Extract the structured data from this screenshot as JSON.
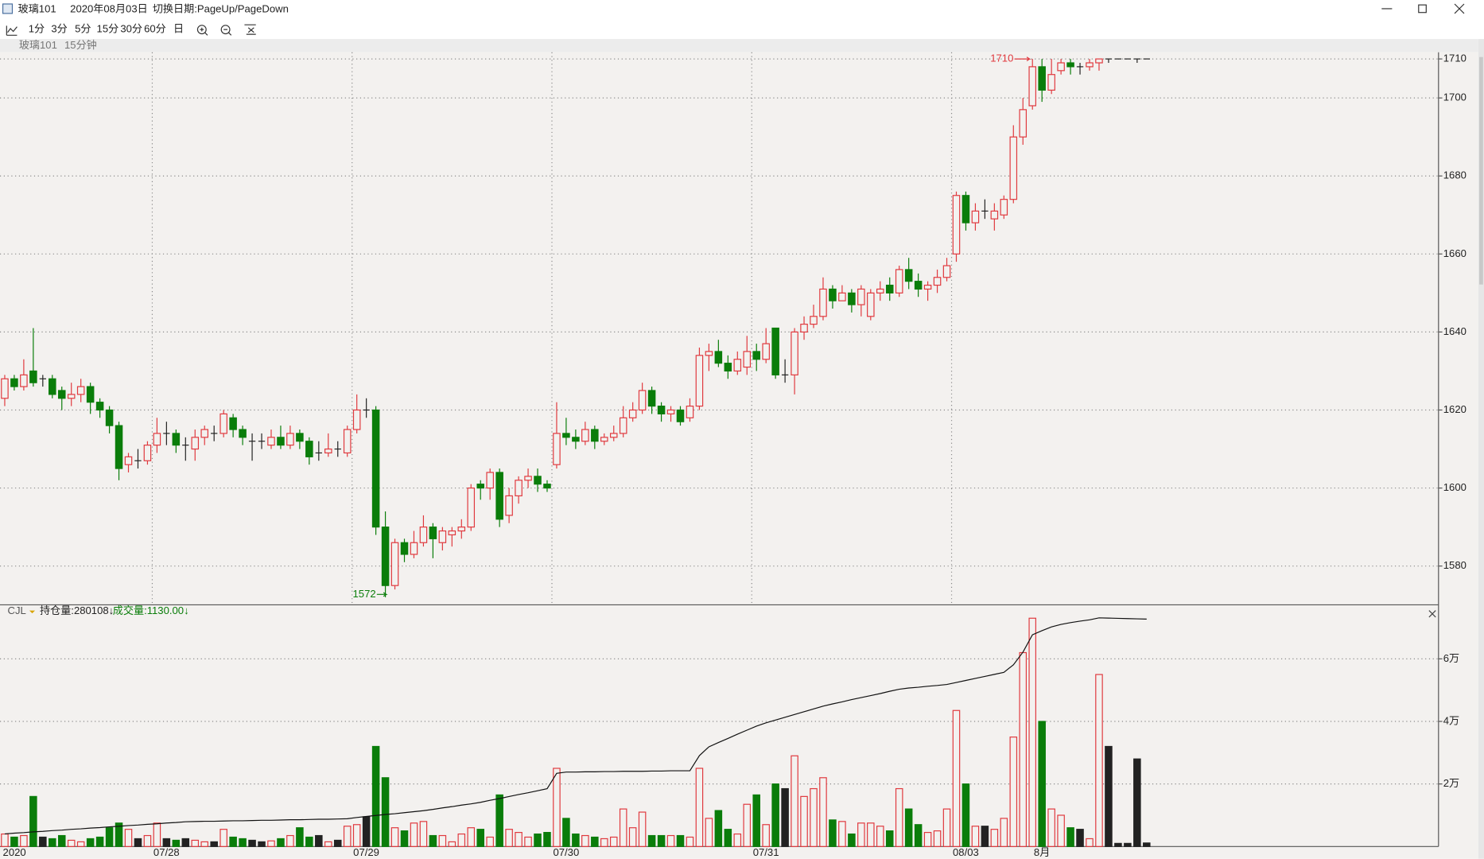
{
  "window": {
    "title": "玻璃101",
    "date": "2020年08月03日",
    "hint": "切换日期:PageUp/PageDown"
  },
  "toolbar": [
    "1分",
    "3分",
    "5分",
    "15分",
    "30分",
    "60分",
    "日"
  ],
  "subheader": [
    "玻璃101",
    "15分钟"
  ],
  "indicator": "CJL",
  "chart_data": [
    {
      "type": "candlestick",
      "up_color": "#e0393e",
      "down_color": "#0a7d0a",
      "flat_color": "#222222",
      "grid": true,
      "annotations": {
        "max": "1710",
        "min": "1572"
      },
      "categories": [
        "2020",
        null,
        null,
        null,
        null,
        null,
        null,
        null,
        null,
        null,
        null,
        null,
        null,
        null,
        null,
        null,
        "07/28",
        null,
        null,
        null,
        null,
        null,
        null,
        null,
        null,
        null,
        null,
        null,
        null,
        null,
        null,
        null,
        null,
        null,
        null,
        null,
        null,
        "07/29",
        null,
        null,
        null,
        null,
        null,
        null,
        null,
        null,
        null,
        null,
        null,
        null,
        null,
        null,
        null,
        null,
        null,
        null,
        null,
        null,
        "07/30",
        null,
        null,
        null,
        null,
        null,
        null,
        null,
        null,
        null,
        null,
        null,
        null,
        null,
        null,
        null,
        null,
        null,
        null,
        null,
        null,
        "07/31",
        null,
        null,
        null,
        null,
        null,
        null,
        null,
        null,
        null,
        null,
        null,
        null,
        null,
        null,
        null,
        null,
        null,
        null,
        null,
        null,
        "08/03",
        null,
        null,
        null,
        null,
        null,
        null,
        null,
        "8月",
        null,
        null,
        null,
        null,
        null,
        null,
        null,
        null,
        null,
        null,
        null,
        null
      ],
      "open": [
        1623,
        1628,
        1626,
        1630,
        1628,
        1628,
        1625,
        1623,
        1624,
        1626,
        1622,
        1620,
        1616,
        1606,
        1607,
        1607,
        1611,
        1614,
        1614,
        1611,
        1610,
        1613,
        1614,
        1614,
        1618,
        1615,
        1612,
        1612,
        1611,
        1613,
        1611,
        1614,
        1612,
        1609,
        1609,
        1610,
        1609,
        1615,
        1620,
        1620,
        1590,
        1575,
        1586,
        1583,
        1586,
        1590,
        1586,
        1588,
        1589,
        1590,
        1601,
        1600,
        1604,
        1593,
        1598,
        1602,
        1603,
        1601,
        1606,
        1614,
        1613,
        1612,
        1615,
        1612,
        1613,
        1614,
        1618,
        1620,
        1625,
        1621,
        1619,
        1620,
        1618,
        1621,
        1634,
        1635,
        1632,
        1630,
        1631,
        1635,
        1633,
        1641,
        1629,
        1629,
        1640,
        1642,
        1644,
        1651,
        1648,
        1650,
        1647,
        1644,
        1650,
        1652,
        1650,
        1656,
        1653,
        1651,
        1652,
        1654,
        1660,
        1675,
        1668,
        1671,
        1669,
        1670,
        1674,
        1690,
        1698,
        1708,
        1702,
        1707,
        1709,
        1708,
        1708,
        1709,
        1710,
        1710,
        1710,
        1710,
        1710
      ],
      "high": [
        1629,
        1629,
        1633,
        1641,
        1629,
        1629,
        1626,
        1627,
        1628,
        1627,
        1623,
        1621,
        1617,
        1609,
        1610,
        1612,
        1618,
        1617,
        1615,
        1613,
        1615,
        1616,
        1616,
        1620,
        1619,
        1616,
        1614,
        1614,
        1615,
        1616,
        1616,
        1615,
        1613,
        1612,
        1614,
        1612,
        1616,
        1624,
        1623,
        1621,
        1594,
        1587,
        1587,
        1589,
        1593,
        1591,
        1590,
        1590,
        1592,
        1601,
        1602,
        1605,
        1605,
        1600,
        1603,
        1605,
        1605,
        1602,
        1622,
        1618,
        1615,
        1617,
        1616,
        1614,
        1616,
        1621,
        1622,
        1627,
        1626,
        1622,
        1621,
        1621,
        1623,
        1636,
        1637,
        1638,
        1634,
        1635,
        1639,
        1637,
        1641,
        1641,
        1633,
        1641,
        1644,
        1647,
        1654,
        1652,
        1652,
        1651,
        1652,
        1651,
        1653,
        1654,
        1657,
        1659,
        1655,
        1653,
        1656,
        1659,
        1676,
        1676,
        1673,
        1674,
        1673,
        1675,
        1693,
        1700,
        1710,
        1710,
        1710,
        1710,
        1710,
        1709,
        1710,
        1710,
        1710,
        1710,
        1710,
        1710,
        1710
      ],
      "low": [
        1621,
        1625,
        1625,
        1626,
        1626,
        1623,
        1620,
        1621,
        1622,
        1619,
        1618,
        1614,
        1602,
        1604,
        1605,
        1606,
        1609,
        1611,
        1609,
        1607,
        1607,
        1611,
        1612,
        1613,
        1613,
        1611,
        1607,
        1610,
        1610,
        1610,
        1610,
        1610,
        1606,
        1607,
        1608,
        1608,
        1608,
        1614,
        1618,
        1588,
        1572,
        1574,
        1581,
        1582,
        1585,
        1582,
        1584,
        1585,
        1587,
        1589,
        1597,
        1597,
        1590,
        1591,
        1596,
        1600,
        1599,
        1599,
        1605,
        1611,
        1610,
        1611,
        1610,
        1611,
        1612,
        1613,
        1617,
        1619,
        1619,
        1617,
        1617,
        1616,
        1617,
        1620,
        1630,
        1631,
        1628,
        1629,
        1629,
        1630,
        1632,
        1628,
        1627,
        1624,
        1638,
        1641,
        1643,
        1646,
        1648,
        1645,
        1644,
        1643,
        1648,
        1648,
        1649,
        1651,
        1649,
        1648,
        1650,
        1653,
        1658,
        1666,
        1666,
        1669,
        1666,
        1669,
        1673,
        1688,
        1697,
        1699,
        1701,
        1706,
        1706,
        1706,
        1707,
        1707,
        1709,
        1710,
        1710,
        1709,
        1710
      ],
      "close": [
        1628,
        1626,
        1629,
        1627,
        1628,
        1624,
        1623,
        1624,
        1626,
        1622,
        1620,
        1616,
        1605,
        1608,
        1607,
        1611,
        1614,
        1614,
        1611,
        1611,
        1613,
        1615,
        1614,
        1619,
        1615,
        1613,
        1612,
        1612,
        1613,
        1611,
        1614,
        1612,
        1608,
        1609,
        1610,
        1610,
        1615,
        1620,
        1620,
        1590,
        1575,
        1586,
        1583,
        1586,
        1590,
        1587,
        1589,
        1589,
        1590,
        1600,
        1600,
        1604,
        1592,
        1598,
        1602,
        1603,
        1601,
        1600,
        1614,
        1613,
        1612,
        1615,
        1612,
        1613,
        1614,
        1618,
        1620,
        1625,
        1621,
        1619,
        1620,
        1617,
        1621,
        1634,
        1635,
        1632,
        1630,
        1633,
        1635,
        1633,
        1637,
        1629,
        1629,
        1640,
        1642,
        1644,
        1651,
        1648,
        1650,
        1647,
        1651,
        1650,
        1651,
        1650,
        1656,
        1653,
        1651,
        1652,
        1654,
        1657,
        1675,
        1668,
        1671,
        1671,
        1671,
        1674,
        1690,
        1697,
        1708,
        1702,
        1706,
        1709,
        1708,
        1708,
        1709,
        1710,
        1710,
        1710,
        1710,
        1710,
        1710
      ],
      "ylim": [
        1570.3,
        1711.7
      ],
      "yticks": [
        1580,
        1600,
        1620,
        1640,
        1660,
        1680,
        1700,
        1710
      ]
    },
    {
      "type": "bar",
      "grid": true,
      "legend": [
        "持仓量:280108↓",
        "成交量:1130.00↓"
      ],
      "ylim": [
        0,
        76670
      ],
      "yticks": [
        {
          "value": 20000,
          "label": "2万"
        },
        {
          "value": 40000,
          "label": "4万"
        },
        {
          "value": 60000,
          "label": "6万"
        }
      ],
      "y2lim": [
        190000,
        285000
      ],
      "series": [
        {
          "values": [
            4000,
            3000,
            3500,
            16000,
            3000,
            2500,
            3500,
            2000,
            1500,
            2500,
            3000,
            6000,
            7500,
            5500,
            2500,
            3500,
            7500,
            2500,
            2000,
            2500,
            2000,
            1500,
            1500,
            5500,
            3000,
            2500,
            2000,
            1500,
            1800,
            2500,
            3500,
            6000,
            3000,
            3500,
            1500,
            2000,
            6500,
            7000,
            9500,
            32000,
            22000,
            6000,
            5000,
            7500,
            8000,
            3500,
            3500,
            1500,
            4000,
            6000,
            5500,
            3000,
            16500,
            5500,
            4500,
            3000,
            4000,
            4500,
            25000,
            9000,
            4000,
            3500,
            3000,
            2500,
            3000,
            12000,
            6000,
            11000,
            3500,
            3500,
            3500,
            3500,
            3000,
            25000,
            9000,
            11500,
            5500,
            4000,
            13500,
            16500,
            7000,
            20000,
            18500,
            29000,
            16000,
            18500,
            22000,
            8500,
            8000,
            4000,
            7500,
            7500,
            6500,
            5000,
            18500,
            12000,
            7000,
            4500,
            5000,
            12000,
            43500,
            20000,
            6500,
            6500,
            5500,
            9000,
            35000,
            62000,
            73000,
            40000,
            12000,
            10000,
            6000,
            5500,
            2500,
            55000,
            32000,
            1000,
            1000,
            28000,
            1130
          ]
        },
        {
          "type": "line",
          "axis": "y2",
          "color": "#111111",
          "values": [
            195000,
            195300,
            195500,
            195800,
            196000,
            196300,
            196500,
            196800,
            197000,
            197300,
            197500,
            197800,
            198000,
            198300,
            198500,
            198800,
            199000,
            199300,
            199500,
            199800,
            199900,
            200000,
            200000,
            200100,
            200200,
            200200,
            200300,
            200400,
            200400,
            200500,
            200600,
            200600,
            200700,
            200800,
            200800,
            200900,
            201000,
            201500,
            201900,
            202300,
            202700,
            203000,
            203400,
            203800,
            204200,
            204700,
            205300,
            205800,
            206400,
            206900,
            207500,
            208300,
            209000,
            209800,
            210600,
            211300,
            212100,
            212900,
            219000,
            219500,
            219500,
            219600,
            219600,
            219700,
            219700,
            219800,
            219800,
            219800,
            219900,
            219900,
            220000,
            220000,
            220000,
            226000,
            229500,
            231200,
            232800,
            234500,
            236100,
            237700,
            239000,
            240100,
            241200,
            242300,
            243400,
            244500,
            245600,
            246500,
            247300,
            248200,
            249000,
            249800,
            250600,
            251500,
            252300,
            252800,
            253100,
            253500,
            253800,
            254200,
            255000,
            255800,
            256600,
            257400,
            258200,
            259000,
            262000,
            267000,
            273900,
            275500,
            277000,
            278000,
            278700,
            279300,
            279800,
            280600,
            280500,
            280400,
            280300,
            280200,
            280108
          ]
        }
      ]
    }
  ]
}
